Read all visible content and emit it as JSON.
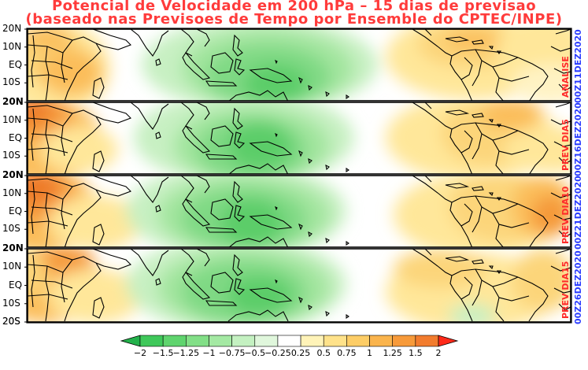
{
  "title": {
    "line1": "Potencial de Velocidade em 200 hPa – 15 dias de previsao",
    "line2": "(baseado nas Previsoes de Tempo por Ensemble do CPTEC/INPE)"
  },
  "latitude_labels": [
    "20N",
    "10N",
    "EQ",
    "10S",
    "20S"
  ],
  "panels": [
    {
      "label": "ANALISE",
      "date": "00Z11DEZ2020"
    },
    {
      "label": "PREV DIA5",
      "date": "00Z16DEZ2020"
    },
    {
      "label": "PREV DIA10",
      "date": "00Z21DEZ2020"
    },
    {
      "label": "PREV DIA15",
      "date": "00Z26DEZ2020"
    }
  ],
  "colorbar": {
    "ticks": [
      "−2",
      "−1.5",
      "−1.25",
      "−1",
      "−0.75",
      "−0.5",
      "−0.25",
      "0.25",
      "0.5",
      "0.75",
      "1",
      "1.25",
      "1.5",
      "2"
    ],
    "colors": [
      "#23b14b",
      "#3fc85a",
      "#5fd46e",
      "#82df87",
      "#a4e9a3",
      "#c4f1c1",
      "#e0f7dc",
      "#ffffff",
      "#fff3b8",
      "#ffe28a",
      "#fdcd66",
      "#fab44d",
      "#f79a3a",
      "#f27c2e",
      "#ff2a1a"
    ]
  }
}
